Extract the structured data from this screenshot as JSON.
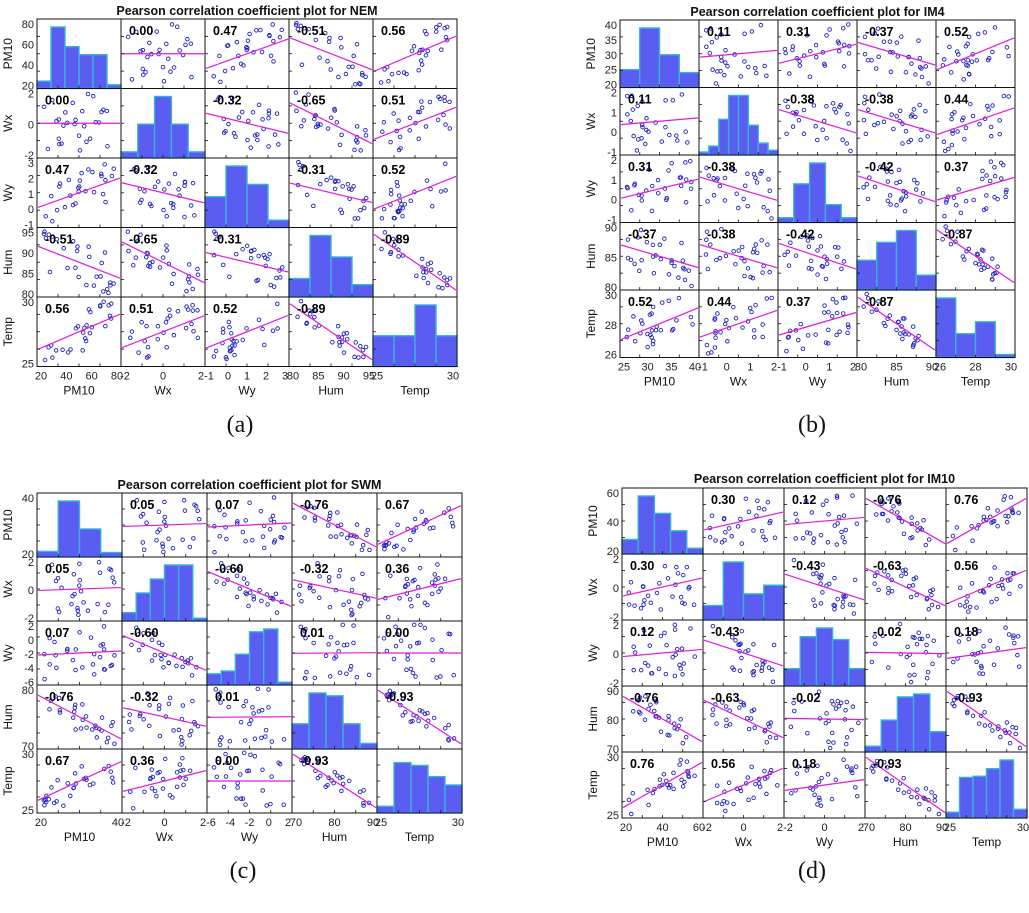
{
  "colors": {
    "bar_fill": "#5a5cf2",
    "bar_edge": "#34b4d8",
    "point": "#2222bb",
    "fit_line": "#e01ae0"
  },
  "variables": [
    "PM10",
    "Wx",
    "Wy",
    "Hum",
    "Temp"
  ],
  "chart_data": [
    {
      "type": "scatter-matrix",
      "title": "Pearson correlation coefficient plot for NEM",
      "caption": "(a)",
      "variables": [
        "PM10",
        "Wx",
        "Wy",
        "Hum",
        "Temp"
      ],
      "ranges": [
        [
          20,
          80
        ],
        [
          -2.5,
          2.5
        ],
        [
          -1,
          4
        ],
        [
          75,
          95
        ],
        [
          25,
          30
        ]
      ],
      "y_ticks": [
        [
          "20",
          "40",
          "60",
          "80"
        ],
        [
          "-2",
          "0",
          "2"
        ],
        [
          "-1",
          "0",
          "1",
          "2",
          "3"
        ],
        [
          "80",
          "85",
          "90",
          "95"
        ],
        [
          "25",
          "30"
        ]
      ],
      "x_ticks": [
        [
          "20",
          "40",
          "60",
          "80"
        ],
        [
          "-2",
          "0",
          "2"
        ],
        [
          "-1",
          "0",
          "1",
          "2",
          "3"
        ],
        [
          "80",
          "85",
          "90",
          "95"
        ],
        [
          "25",
          "30"
        ]
      ],
      "histograms": [
        [
          0.12,
          1.0,
          0.68,
          0.55,
          0.55,
          0.06
        ],
        [
          0.1,
          0.55,
          1.0,
          0.55,
          0.1
        ],
        [
          0.5,
          1.0,
          0.7,
          0.12
        ],
        [
          0.3,
          1.0,
          0.65,
          0.2
        ],
        [
          0.5,
          0.5,
          1.0,
          0.5
        ]
      ],
      "correlation_matrix": [
        [
          1,
          0.0,
          0.47,
          -0.51,
          0.56
        ],
        [
          0.0,
          1,
          -0.32,
          -0.65,
          0.51
        ],
        [
          0.47,
          -0.32,
          1,
          -0.31,
          0.52
        ],
        [
          -0.51,
          -0.65,
          -0.31,
          1,
          -0.89
        ],
        [
          0.56,
          0.51,
          0.52,
          -0.89,
          1
        ]
      ],
      "correlation_labels": [
        [
          "",
          "0.00",
          "0.47",
          "-0.51",
          "0.56"
        ],
        [
          "0.00",
          "",
          "-0.32",
          "-0.65",
          "0.51"
        ],
        [
          "0.47",
          "-0.32",
          "",
          "-0.31",
          "0.52"
        ],
        [
          "-0.51",
          "-0.65",
          "-0.31",
          "",
          "-0.89"
        ],
        [
          "0.56",
          "0.51",
          "0.52",
          "-0.89",
          ""
        ]
      ]
    },
    {
      "type": "scatter-matrix",
      "title": "Pearson correlation coefficient plot for IM4",
      "caption": "(b)",
      "variables": [
        "PM10",
        "Wx",
        "Wy",
        "Hum",
        "Temp"
      ],
      "ranges": [
        [
          20,
          40
        ],
        [
          -1.5,
          2
        ],
        [
          -1,
          2.5
        ],
        [
          75,
          92
        ],
        [
          25.5,
          30
        ]
      ],
      "y_ticks": [
        [
          "20",
          "25",
          "30",
          "35",
          "40"
        ],
        [
          "-1",
          "0",
          "1",
          "2"
        ],
        [
          "-1",
          "0",
          "1",
          "2"
        ],
        [
          "80",
          "85",
          "90"
        ],
        [
          "26",
          "28",
          "30"
        ]
      ],
      "x_ticks": [
        [
          "25",
          "30",
          "35",
          "40"
        ],
        [
          "-1",
          "0",
          "1",
          "2"
        ],
        [
          "-1",
          "0",
          "1",
          "2"
        ],
        [
          "80",
          "85",
          "90"
        ],
        [
          "26",
          "28",
          "30"
        ]
      ],
      "histograms": [
        [
          0.3,
          1.0,
          0.55,
          0.25
        ],
        [
          0.05,
          0.15,
          0.6,
          1.0,
          1.0,
          0.5,
          0.2,
          0.08
        ],
        [
          0.08,
          0.65,
          1.0,
          0.3,
          0.08
        ],
        [
          0.5,
          0.8,
          1.0,
          0.25
        ],
        [
          1.0,
          0.4,
          0.6,
          0.05
        ]
      ],
      "correlation_matrix": [
        [
          1,
          0.11,
          0.31,
          -0.37,
          0.52
        ],
        [
          0.11,
          1,
          -0.38,
          -0.38,
          0.44
        ],
        [
          0.31,
          -0.38,
          1,
          -0.42,
          0.37
        ],
        [
          -0.37,
          -0.38,
          -0.42,
          1,
          -0.87
        ],
        [
          0.52,
          0.44,
          0.37,
          -0.87,
          1
        ]
      ],
      "correlation_labels": [
        [
          "",
          "0.11",
          "0.31",
          "-0.37",
          "0.52"
        ],
        [
          "0.11",
          "",
          "-0.38",
          "-0.38",
          "0.44"
        ],
        [
          "0.31",
          "-0.38",
          "",
          "-0.42",
          "0.37"
        ],
        [
          "-0.37",
          "-0.38",
          "-0.42",
          "",
          "-0.87"
        ],
        [
          "0.52",
          "0.44",
          "0.37",
          "-0.87",
          ""
        ]
      ]
    },
    {
      "type": "scatter-matrix",
      "title": "Pearson correlation coefficient plot for SWM",
      "caption": "(c)",
      "variables": [
        "PM10",
        "Wx",
        "Wy",
        "Hum",
        "Temp"
      ],
      "ranges": [
        [
          10,
          45
        ],
        [
          -2.5,
          3
        ],
        [
          -6,
          3
        ],
        [
          68,
          90
        ],
        [
          22,
          30
        ]
      ],
      "y_ticks": [
        [
          "20",
          "40"
        ],
        [
          "-2",
          "0",
          "2"
        ],
        [
          "-6",
          "-4",
          "-2",
          "0",
          "2"
        ],
        [
          "70",
          "80"
        ],
        [
          "25",
          "30"
        ]
      ],
      "x_ticks": [
        [
          "20",
          "40"
        ],
        [
          "-2",
          "0",
          "2"
        ],
        [
          "-6",
          "-4",
          "-2",
          "0",
          "2"
        ],
        [
          "70",
          "80",
          "90"
        ],
        [
          "25",
          "30"
        ]
      ],
      "histograms": [
        [
          0.1,
          1.0,
          0.5,
          0.08
        ],
        [
          0.15,
          0.5,
          0.75,
          1.0,
          1.0,
          0.05
        ],
        [
          0.2,
          0.25,
          0.55,
          0.95,
          1.0,
          0.05
        ],
        [
          0.45,
          1.0,
          0.95,
          0.45,
          0.1
        ],
        [
          0.12,
          0.9,
          0.85,
          0.65,
          0.5
        ]
      ],
      "correlation_matrix": [
        [
          1,
          0.05,
          0.07,
          -0.76,
          0.67
        ],
        [
          0.05,
          1,
          -0.6,
          -0.32,
          0.36
        ],
        [
          0.07,
          -0.6,
          1,
          0.01,
          0.0
        ],
        [
          -0.76,
          -0.32,
          0.01,
          1,
          -0.93
        ],
        [
          0.67,
          0.36,
          0.0,
          -0.93,
          1
        ]
      ],
      "correlation_labels": [
        [
          "",
          "0.05",
          "0.07",
          "-0.76",
          "0.67"
        ],
        [
          "0.05",
          "",
          "-0.60",
          "-0.32",
          "0.36"
        ],
        [
          "0.07",
          "-0.60",
          "",
          "0.01",
          "0.00"
        ],
        [
          "-0.76",
          "-0.32",
          "0.01",
          "",
          "-0.93"
        ],
        [
          "0.67",
          "0.36",
          "0.00",
          "-0.93",
          ""
        ]
      ]
    },
    {
      "type": "scatter-matrix",
      "title": "Pearson correlation coefficient plot for IM10",
      "caption": "(d)",
      "variables": [
        "PM10",
        "Wx",
        "Wy",
        "Hum",
        "Temp"
      ],
      "ranges": [
        [
          20,
          62
        ],
        [
          -2,
          2.5
        ],
        [
          -2.5,
          3
        ],
        [
          68,
          92
        ],
        [
          24.5,
          30
        ]
      ],
      "y_ticks": [
        [
          "20",
          "40",
          "60"
        ],
        [
          "-2",
          "0",
          "2"
        ],
        [
          "-2",
          "0",
          "2"
        ],
        [
          "70",
          "80",
          "90"
        ],
        [
          "25",
          "30"
        ]
      ],
      "x_ticks": [
        [
          "20",
          "40",
          "60"
        ],
        [
          "-2",
          "0",
          "2"
        ],
        [
          "-2",
          "0",
          "2"
        ],
        [
          "70",
          "80",
          "90"
        ],
        [
          "25",
          "30"
        ]
      ],
      "histograms": [
        [
          0.25,
          1.0,
          0.7,
          0.4,
          0.1
        ],
        [
          0.25,
          1.0,
          0.45,
          0.6
        ],
        [
          0.3,
          0.85,
          1.0,
          0.8,
          0.3
        ],
        [
          0.1,
          0.55,
          0.95,
          1.0,
          0.35
        ],
        [
          0.1,
          0.7,
          0.72,
          0.85,
          1.0,
          0.15
        ]
      ],
      "correlation_matrix": [
        [
          1,
          0.3,
          0.12,
          -0.76,
          0.76
        ],
        [
          0.3,
          1,
          -0.43,
          -0.63,
          0.56
        ],
        [
          0.12,
          -0.43,
          1,
          -0.02,
          0.18
        ],
        [
          -0.76,
          -0.63,
          -0.02,
          1,
          -0.93
        ],
        [
          0.76,
          0.56,
          0.18,
          -0.93,
          1
        ]
      ],
      "correlation_labels": [
        [
          "",
          "0.30",
          "0.12",
          "-0.76",
          "0.76"
        ],
        [
          "0.30",
          "",
          "-0.43",
          "-0.63",
          "0.56"
        ],
        [
          "0.12",
          "-0.43",
          "",
          "-0.02",
          "0.18"
        ],
        [
          "-0.76",
          "-0.63",
          "-0.02",
          "",
          "-0.93"
        ],
        [
          "0.76",
          "0.56",
          "0.18",
          "-0.93",
          ""
        ]
      ]
    }
  ]
}
